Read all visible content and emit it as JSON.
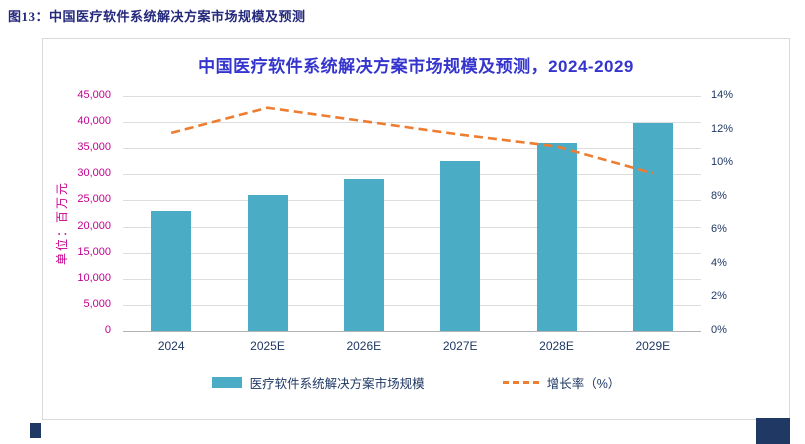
{
  "caption": "图13：中国医疗软件系统解决方案市场规模及预测",
  "chart_data": {
    "type": "bar",
    "title": "中国医疗软件系统解决方案市场规模及预测，2024-2029",
    "categories": [
      "2024",
      "2025E",
      "2026E",
      "2027E",
      "2028E",
      "2029E"
    ],
    "series": [
      {
        "name": "医疗软件系统解决方案市场规模",
        "type": "bar",
        "axis": "left",
        "values": [
          23000,
          26000,
          29200,
          32500,
          36000,
          39800
        ]
      },
      {
        "name": "增长率（%）",
        "type": "line",
        "axis": "right",
        "values": [
          11.8,
          13.3,
          12.5,
          11.7,
          11.0,
          9.4
        ]
      }
    ],
    "left_axis": {
      "label": "单位：百万元",
      "min": 0,
      "max": 45000,
      "step": 5000
    },
    "right_axis": {
      "min": 0,
      "max": 14,
      "step": 2,
      "suffix": "%"
    },
    "grid": "horizontal",
    "legend_position": "bottom",
    "colors": {
      "bar": "#4BACC6",
      "line": "#ED7D31",
      "left_axis_text": "#C2008F",
      "right_axis_text": "#1F3864",
      "x_axis_text": "#1F3864",
      "legend_text": "#1F3864",
      "title": "#3535CE",
      "caption": "#24297B",
      "corner_decoration": "#1F3864"
    }
  }
}
